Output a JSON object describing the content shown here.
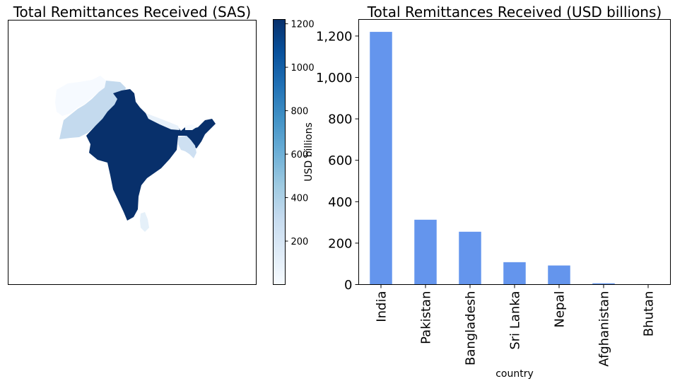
{
  "chart_data": [
    {
      "type": "choropleth",
      "title": "Total Remittances Received (SAS)",
      "colorbar": {
        "label": "USD billions",
        "range": [
          0,
          1220
        ],
        "ticks": [
          200,
          400,
          600,
          800,
          1000,
          1200
        ],
        "colormap": "Blues",
        "color_low": "#f7fbff",
        "color_high": "#08306b"
      },
      "regions": [
        {
          "name": "India",
          "value": 1220
        },
        {
          "name": "Pakistan",
          "value": 313
        },
        {
          "name": "Bangladesh",
          "value": 255
        },
        {
          "name": "Sri Lanka",
          "value": 108
        },
        {
          "name": "Nepal",
          "value": 92
        },
        {
          "name": "Afghanistan",
          "value": 6
        },
        {
          "name": "Bhutan",
          "value": 2
        }
      ]
    },
    {
      "type": "bar",
      "title": "Total Remittances Received (USD billions)",
      "xlabel": "country",
      "ylabel": "",
      "ylim": [
        0,
        1280
      ],
      "yticks": [
        0,
        200,
        400,
        600,
        800,
        1000,
        1200
      ],
      "ytick_labels": [
        "0",
        "200",
        "400",
        "600",
        "800",
        "1,000",
        "1,200"
      ],
      "bar_color": "#6495ed",
      "categories": [
        "India",
        "Pakistan",
        "Bangladesh",
        "Sri Lanka",
        "Nepal",
        "Afghanistan",
        "Bhutan"
      ],
      "values": [
        1220,
        313,
        255,
        108,
        92,
        6,
        2
      ]
    }
  ]
}
